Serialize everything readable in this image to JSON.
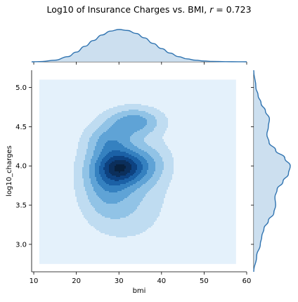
{
  "chart_data": {
    "type": "heatmap",
    "kind": "joint-kde-plot",
    "title_prefix": "Log10 of Insurance Charges vs. BMI, ",
    "title_r_label": "r",
    "title_r_value": " = 0.723",
    "xlabel": "bmi",
    "ylabel": "log10_charges",
    "xlim": [
      9.5,
      60
    ],
    "ylim": [
      2.65,
      5.22
    ],
    "xticks": [
      "10",
      "20",
      "30",
      "40",
      "50",
      "60"
    ],
    "yticks": [
      "3.0",
      "3.5",
      "4.0",
      "4.5",
      "5.0"
    ],
    "kde_extent": {
      "x": [
        11.3,
        57.5
      ],
      "y": [
        2.75,
        5.1
      ]
    },
    "kde_peak": {
      "x": 31,
      "y": 3.99
    },
    "marginal_x": {
      "x": [
        9.5,
        12,
        15,
        18,
        20,
        22,
        24,
        26,
        28,
        30,
        32,
        34,
        36,
        38,
        40,
        42,
        44,
        46,
        48,
        50,
        52,
        55,
        58,
        60
      ],
      "density": [
        0.0,
        0.01,
        0.05,
        0.16,
        0.3,
        0.48,
        0.66,
        0.83,
        0.95,
        1.0,
        0.97,
        0.88,
        0.74,
        0.57,
        0.41,
        0.27,
        0.16,
        0.09,
        0.05,
        0.025,
        0.012,
        0.004,
        0.001,
        0.0
      ]
    },
    "marginal_y": {
      "y": [
        2.65,
        2.85,
        3.0,
        3.1,
        3.2,
        3.3,
        3.4,
        3.5,
        3.6,
        3.7,
        3.8,
        3.9,
        4.0,
        4.1,
        4.2,
        4.3,
        4.4,
        4.5,
        4.6,
        4.7,
        4.8,
        4.9,
        5.0,
        5.22
      ],
      "density": [
        0.0,
        0.08,
        0.18,
        0.22,
        0.28,
        0.4,
        0.55,
        0.6,
        0.58,
        0.64,
        0.8,
        0.95,
        1.0,
        0.85,
        0.6,
        0.42,
        0.36,
        0.4,
        0.43,
        0.32,
        0.2,
        0.12,
        0.06,
        0.0
      ]
    },
    "colors": {
      "levels": [
        "#e4f1fb",
        "#bfdcf1",
        "#91c3e6",
        "#5fa3d6",
        "#3581c0",
        "#1b61a6",
        "#0d4281",
        "#0b2f5c",
        "#08213e"
      ],
      "marginal_line": "#2f73b0",
      "marginal_fill": "#c3d9ec"
    }
  }
}
